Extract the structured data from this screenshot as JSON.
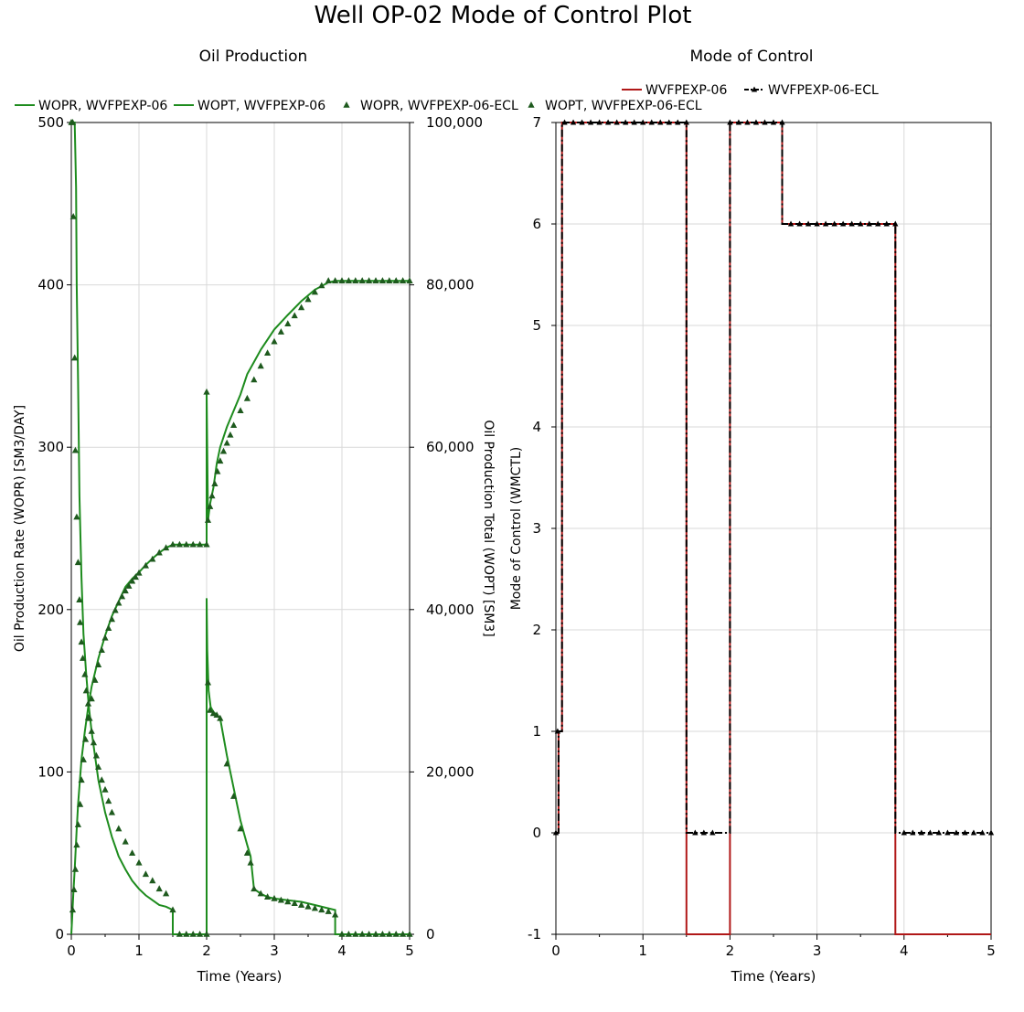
{
  "title": "Well OP-02 Mode of Control Plot",
  "chart_data": [
    {
      "type": "line",
      "title": "Oil Production",
      "xlabel": "Time (Years)",
      "ylabel": "Oil Production Rate (WOPR) [SM3/DAY]",
      "y2label": "Oil Production Total (WOPT) [SM3]",
      "xlim": [
        0,
        5
      ],
      "ylim": [
        0,
        500
      ],
      "y2lim": [
        0,
        100000
      ],
      "x_ticks": [
        0,
        1,
        2,
        3,
        4,
        5
      ],
      "x_tick_labels": [
        "0",
        "1",
        "2",
        "3",
        "4",
        "5"
      ],
      "y_ticks": [
        0,
        100,
        200,
        300,
        400,
        500
      ],
      "y_tick_labels": [
        "0",
        "100",
        "200",
        "300",
        "400",
        "500"
      ],
      "y2_ticks": [
        0,
        20000,
        40000,
        60000,
        80000,
        100000
      ],
      "y2_tick_labels": [
        "0",
        "20,000",
        "40,000",
        "60,000",
        "80,000",
        "100,000"
      ],
      "grid": true,
      "legend_position": "top",
      "series": [
        {
          "name": "WOPR, WVFPEXP-06",
          "axis": "left",
          "style": "line",
          "color": "#1e8c1e",
          "x": [
            0,
            0.01,
            0.03,
            0.05,
            0.07,
            0.08,
            0.1,
            0.12,
            0.15,
            0.18,
            0.22,
            0.26,
            0.3,
            0.35,
            0.4,
            0.5,
            0.6,
            0.7,
            0.8,
            0.9,
            1.0,
            1.1,
            1.2,
            1.3,
            1.4,
            1.5,
            1.5,
            1.6,
            1.7,
            1.8,
            1.9,
            1.99,
            2.0,
            2.0,
            2.01,
            2.03,
            2.06,
            2.1,
            2.15,
            2.2,
            2.3,
            2.4,
            2.5,
            2.6,
            2.65,
            2.7,
            2.8,
            2.9,
            3.0,
            3.2,
            3.4,
            3.6,
            3.8,
            3.9,
            3.9,
            4.0,
            4.2,
            4.4,
            4.6,
            4.8,
            5.0
          ],
          "y": [
            500,
            500,
            500,
            500,
            460,
            400,
            340,
            270,
            220,
            185,
            160,
            140,
            125,
            110,
            95,
            75,
            60,
            48,
            40,
            33,
            28,
            24,
            21,
            18,
            17,
            15,
            0,
            0,
            0,
            0,
            0,
            0,
            0,
            207,
            175,
            150,
            140,
            137,
            135,
            133,
            110,
            90,
            70,
            55,
            48,
            28,
            25,
            23,
            22,
            21,
            20,
            18,
            16,
            15,
            0,
            0,
            0,
            0,
            0,
            0,
            0
          ]
        },
        {
          "name": "WOPT, WVFPEXP-06",
          "axis": "right",
          "style": "line",
          "color": "#1e8c1e",
          "x": [
            0,
            0.01,
            0.03,
            0.05,
            0.08,
            0.1,
            0.15,
            0.2,
            0.25,
            0.3,
            0.4,
            0.5,
            0.6,
            0.7,
            0.8,
            0.9,
            1.0,
            1.1,
            1.2,
            1.3,
            1.4,
            1.5,
            1.6,
            1.8,
            1.99,
            2.0,
            2.0,
            2.02,
            2.05,
            2.1,
            2.15,
            2.2,
            2.3,
            2.4,
            2.5,
            2.6,
            2.7,
            2.8,
            3.0,
            3.2,
            3.4,
            3.6,
            3.8,
            3.9,
            4.0,
            4.5,
            5.0
          ],
          "y": [
            0,
            1500,
            5000,
            8000,
            13000,
            16000,
            21500,
            25000,
            28000,
            30500,
            34000,
            36800,
            39200,
            41000,
            42800,
            43800,
            44600,
            45500,
            46300,
            47000,
            47600,
            48000,
            48000,
            48000,
            48000,
            48000,
            66800,
            51000,
            53000,
            55000,
            58000,
            60000,
            62500,
            64500,
            66500,
            69000,
            70500,
            72000,
            74500,
            76300,
            78000,
            79400,
            80300,
            80500,
            80500,
            80500,
            80500
          ]
        },
        {
          "name": "WOPR, WVFPEXP-06-ECL",
          "axis": "left",
          "style": "markers",
          "color": "#1e5a1e",
          "x": [
            0.0,
            0.02,
            0.03,
            0.05,
            0.06,
            0.08,
            0.1,
            0.12,
            0.13,
            0.15,
            0.17,
            0.2,
            0.22,
            0.25,
            0.27,
            0.3,
            0.33,
            0.37,
            0.4,
            0.45,
            0.5,
            0.55,
            0.6,
            0.7,
            0.8,
            0.9,
            1.0,
            1.1,
            1.2,
            1.3,
            1.4,
            1.5,
            1.6,
            1.7,
            1.8,
            1.9,
            2.0,
            2.02,
            2.05,
            2.1,
            2.15,
            2.2,
            2.3,
            2.4,
            2.5,
            2.6,
            2.65,
            2.7,
            2.8,
            2.9,
            3.0,
            3.1,
            3.2,
            3.3,
            3.4,
            3.5,
            3.6,
            3.7,
            3.8,
            3.9,
            4.0,
            4.1,
            4.2,
            4.3,
            4.4,
            4.5,
            4.6,
            4.7,
            4.8,
            4.9,
            5.0
          ],
          "y": [
            500,
            500,
            442,
            355,
            298,
            257,
            229,
            206,
            192,
            180,
            170,
            160,
            150,
            142,
            133,
            125,
            118,
            110,
            103,
            95,
            89,
            82,
            75,
            65,
            57,
            50,
            44,
            37,
            33,
            28,
            25,
            15,
            0,
            0,
            0,
            0,
            0,
            155,
            138,
            136,
            135,
            133,
            105,
            85,
            65,
            50,
            44,
            28,
            25,
            23,
            22,
            21,
            20,
            19,
            18,
            17,
            16,
            15,
            14,
            12,
            0,
            0,
            0,
            0,
            0,
            0,
            0,
            0,
            0,
            0,
            0
          ]
        },
        {
          "name": "WOPT, WVFPEXP-06-ECL",
          "axis": "right",
          "style": "markers",
          "color": "#1e5a1e",
          "x": [
            0.02,
            0.04,
            0.06,
            0.08,
            0.1,
            0.13,
            0.15,
            0.18,
            0.21,
            0.25,
            0.3,
            0.35,
            0.4,
            0.45,
            0.5,
            0.55,
            0.6,
            0.65,
            0.7,
            0.75,
            0.8,
            0.85,
            0.9,
            0.95,
            1.0,
            1.1,
            1.2,
            1.3,
            1.4,
            1.5,
            1.6,
            1.7,
            1.8,
            1.9,
            2.0,
            2.0,
            2.02,
            2.05,
            2.08,
            2.12,
            2.16,
            2.2,
            2.25,
            2.3,
            2.35,
            2.4,
            2.5,
            2.6,
            2.7,
            2.8,
            2.9,
            3.0,
            3.1,
            3.2,
            3.3,
            3.4,
            3.5,
            3.6,
            3.7,
            3.8,
            3.9,
            4.0,
            4.1,
            4.2,
            4.3,
            4.4,
            4.5,
            4.6,
            4.7,
            4.8,
            4.9,
            5.0
          ],
          "y": [
            3000,
            5500,
            8000,
            11000,
            13500,
            16000,
            19000,
            21500,
            24000,
            26700,
            29000,
            31300,
            33200,
            35000,
            36500,
            37700,
            38800,
            39900,
            40800,
            41600,
            42300,
            42900,
            43500,
            44000,
            44500,
            45400,
            46200,
            47000,
            47600,
            48000,
            48000,
            48000,
            48000,
            48000,
            48000,
            66800,
            51000,
            52700,
            54000,
            55500,
            57000,
            58300,
            59500,
            60500,
            61500,
            62700,
            64500,
            66000,
            68300,
            70000,
            71600,
            73000,
            74200,
            75200,
            76200,
            77200,
            78200,
            79100,
            79900,
            80500,
            80500,
            80500,
            80500,
            80500,
            80500,
            80500,
            80500,
            80500,
            80500,
            80500,
            80500,
            80500
          ]
        }
      ]
    },
    {
      "type": "line",
      "title": "Mode of Control",
      "xlabel": "Time (Years)",
      "ylabel": "Mode of Control (WMCTL)",
      "xlim": [
        0,
        5
      ],
      "ylim": [
        -1,
        7
      ],
      "x_ticks": [
        0,
        1,
        2,
        3,
        4,
        5
      ],
      "x_tick_labels": [
        "0",
        "1",
        "2",
        "3",
        "4",
        "5"
      ],
      "y_ticks": [
        -1,
        0,
        1,
        2,
        3,
        4,
        5,
        6,
        7
      ],
      "y_tick_labels": [
        "-1",
        "0",
        "1",
        "2",
        "3",
        "4",
        "5",
        "6",
        "7"
      ],
      "grid": true,
      "legend_position": "top",
      "series": [
        {
          "name": "WVFPEXP-06",
          "style": "step",
          "color": "#b01818",
          "x": [
            0,
            0.03,
            0.03,
            0.07,
            0.07,
            1.5,
            1.5,
            2.0,
            2.0,
            2.6,
            2.6,
            3.9,
            3.9,
            5.0
          ],
          "y": [
            0,
            0,
            1,
            1,
            7,
            7,
            -1,
            -1,
            7,
            7,
            6,
            6,
            -1,
            -1
          ]
        },
        {
          "name": "WVFPEXP-06-ECL",
          "style": "step-dashdot-markers",
          "color": "#000000",
          "x": [
            0,
            0.03,
            0.03,
            0.07,
            0.07,
            1.5,
            1.5,
            2.0,
            2.0,
            2.6,
            2.6,
            3.9,
            3.9,
            5.0
          ],
          "y": [
            0,
            0,
            1,
            1,
            7,
            7,
            0,
            0,
            7,
            7,
            6,
            6,
            0,
            0
          ],
          "markers_x": [
            0,
            0.02,
            0.1,
            0.2,
            0.3,
            0.4,
            0.5,
            0.6,
            0.7,
            0.8,
            0.9,
            1.0,
            1.1,
            1.2,
            1.3,
            1.4,
            1.5,
            1.6,
            1.7,
            1.8,
            2.0,
            2.1,
            2.2,
            2.3,
            2.4,
            2.5,
            2.6,
            2.7,
            2.8,
            2.9,
            3.0,
            3.1,
            3.2,
            3.3,
            3.4,
            3.5,
            3.6,
            3.7,
            3.8,
            3.9,
            4.0,
            4.1,
            4.2,
            4.3,
            4.4,
            4.5,
            4.6,
            4.7,
            4.8,
            4.9,
            5.0
          ],
          "markers_y": [
            0,
            1,
            7,
            7,
            7,
            7,
            7,
            7,
            7,
            7,
            7,
            7,
            7,
            7,
            7,
            7,
            7,
            0,
            0,
            0,
            7,
            7,
            7,
            7,
            7,
            7,
            7,
            6,
            6,
            6,
            6,
            6,
            6,
            6,
            6,
            6,
            6,
            6,
            6,
            6,
            0,
            0,
            0,
            0,
            0,
            0,
            0,
            0,
            0,
            0,
            0
          ]
        }
      ]
    }
  ]
}
